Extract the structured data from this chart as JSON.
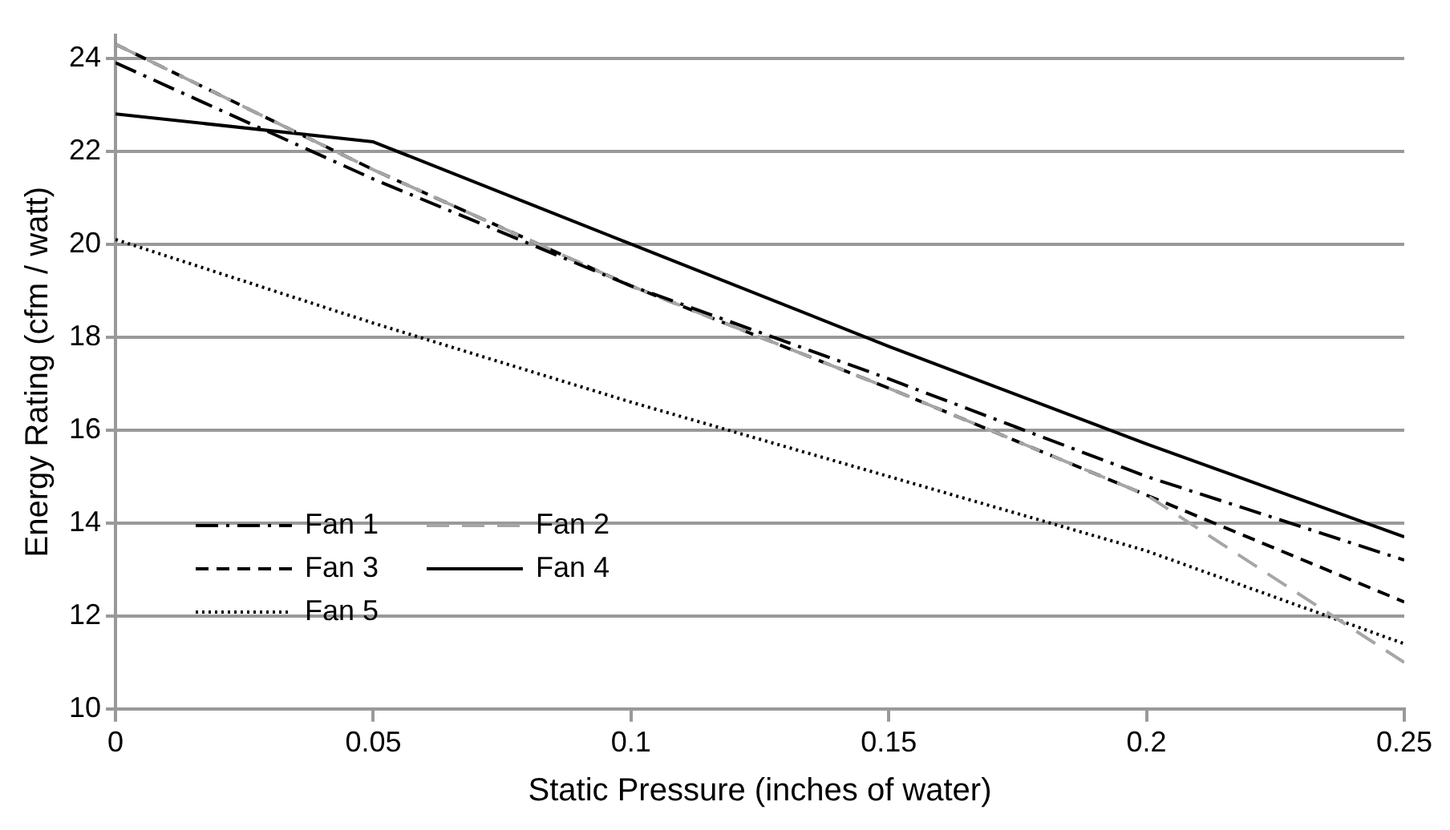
{
  "chart_data": {
    "type": "line",
    "xlabel": "Static Pressure (inches of water)",
    "ylabel": "Energy Rating (cfm / watt)",
    "x": [
      0,
      0.05,
      0.1,
      0.15,
      0.2,
      0.25
    ],
    "series": [
      {
        "name": "Fan 1",
        "color": "#000000",
        "line_style": "dashed",
        "values": [
          23.9,
          21.4,
          19.1,
          17.1,
          15.0,
          13.2
        ]
      },
      {
        "name": "Fan 2",
        "color": "#a6a6a6",
        "line_style": "dashed",
        "values": [
          24.3,
          21.6,
          19.1,
          16.9,
          14.6,
          11.0
        ]
      },
      {
        "name": "Fan 3",
        "color": "#000000",
        "line_style": "dashed",
        "values": [
          24.3,
          21.6,
          19.1,
          16.9,
          14.6,
          12.3
        ]
      },
      {
        "name": "Fan 4",
        "color": "#000000",
        "line_style": "solid",
        "values": [
          22.8,
          22.2,
          20.0,
          17.8,
          15.7,
          13.7
        ]
      },
      {
        "name": "Fan 5",
        "color": "#000000",
        "line_style": "dotted",
        "values": [
          20.1,
          18.3,
          16.6,
          15.0,
          13.4,
          11.4
        ]
      }
    ],
    "xlim": [
      0,
      0.25
    ],
    "xticks": [
      0,
      0.05,
      0.1,
      0.15,
      0.2,
      0.25
    ],
    "ylim": [
      10,
      24.5
    ],
    "yticks": [
      10,
      12,
      14,
      16,
      18,
      20,
      22,
      24
    ],
    "grid": "y",
    "legend": "bottom left",
    "marker": "none"
  }
}
